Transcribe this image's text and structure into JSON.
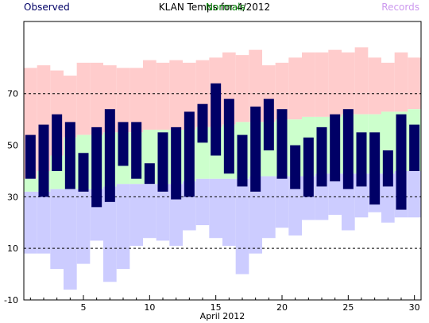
{
  "chart_data": {
    "type": "bar",
    "title": "KLAN Temps for 4/2012",
    "xlabel": "April 2012",
    "ylabel": "",
    "xlim": [
      0.5,
      30.5
    ],
    "ylim": [
      -10,
      98
    ],
    "y_ticks": [
      -10,
      10,
      30,
      50,
      70
    ],
    "x_ticks": [
      5,
      10,
      15,
      20,
      25,
      30
    ],
    "dashed_gridlines_at": [
      10,
      30,
      70
    ],
    "legend": {
      "placement": "top",
      "entries": [
        {
          "name": "Observed",
          "color": "#000066"
        },
        {
          "name": "Normals",
          "color": "#008000"
        },
        {
          "name": "Records",
          "color": "#cc99ee"
        }
      ]
    },
    "days": [
      1,
      2,
      3,
      4,
      5,
      6,
      7,
      8,
      9,
      10,
      11,
      12,
      13,
      14,
      15,
      16,
      17,
      18,
      19,
      20,
      21,
      22,
      23,
      24,
      25,
      26,
      27,
      28,
      29,
      30
    ],
    "series": [
      {
        "name": "Observed",
        "color": "#000066",
        "high": [
          54,
          58,
          62,
          59,
          47,
          57,
          64,
          59,
          59,
          43,
          55,
          57,
          63,
          66,
          74,
          68,
          54,
          65,
          68,
          64,
          50,
          53,
          57,
          62,
          64,
          55,
          55,
          48,
          62,
          58
        ],
        "low": [
          37,
          30,
          40,
          33,
          32,
          26,
          28,
          42,
          37,
          35,
          32,
          29,
          30,
          51,
          46,
          39,
          34,
          32,
          48,
          37,
          33,
          30,
          34,
          36,
          33,
          34,
          27,
          34,
          25,
          40
        ]
      },
      {
        "name": "Normals",
        "color": "#ccffcc",
        "high": [
          37,
          40,
          46,
          53,
          54,
          54,
          55,
          55,
          55,
          56,
          56,
          56,
          56,
          57,
          57,
          58,
          59,
          59,
          59,
          60,
          60,
          61,
          61,
          61,
          62,
          62,
          62,
          63,
          63,
          64
        ],
        "low": [
          32,
          32,
          33,
          33,
          33,
          33,
          34,
          35,
          35,
          35,
          35,
          35,
          36,
          37,
          37,
          37,
          37,
          38,
          38,
          38,
          38,
          38,
          39,
          39,
          39,
          39,
          39,
          39,
          40,
          40
        ]
      },
      {
        "name": "Records",
        "high_color": "#ffcccc",
        "low_color": "#ccccff",
        "high": [
          80,
          81,
          79,
          77,
          82,
          82,
          81,
          80,
          80,
          83,
          82,
          83,
          82,
          83,
          84,
          86,
          85,
          87,
          81,
          82,
          84,
          86,
          86,
          87,
          86,
          88,
          84,
          82,
          86,
          84
        ],
        "low": [
          8,
          8,
          2,
          -6,
          4,
          13,
          -3,
          2,
          11,
          14,
          13,
          11,
          17,
          19,
          14,
          11,
          0,
          8,
          14,
          18,
          15,
          21,
          21,
          23,
          17,
          22,
          24,
          20,
          22,
          22
        ]
      }
    ]
  }
}
